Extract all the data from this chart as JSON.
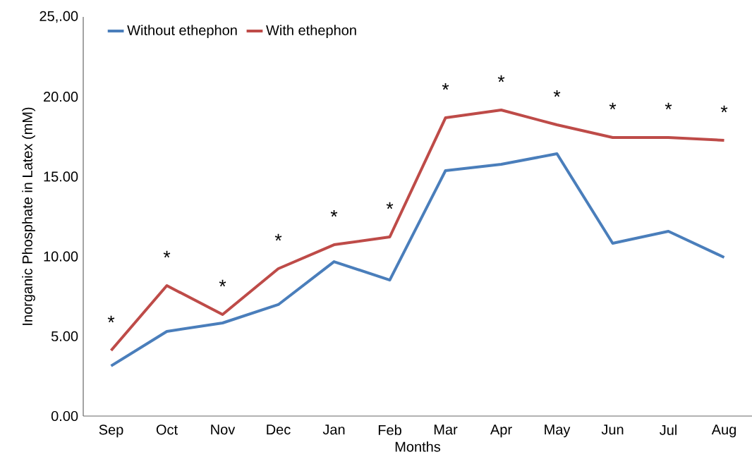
{
  "chart_data": {
    "type": "line",
    "xlabel": "Months",
    "ylabel": "Inorganic Phosphate in Latex (mM)",
    "categories": [
      "Sep",
      "Oct",
      "Nov",
      "Dec",
      "Jan",
      "Feb",
      "Mar",
      "Apr",
      "May",
      "Jun",
      "Jul",
      "Aug"
    ],
    "series": [
      {
        "name": "Without ethephon",
        "color": "#4a7ebb",
        "values": [
          3.14,
          5.3,
          5.83,
          6.98,
          9.67,
          8.52,
          15.37,
          15.77,
          16.43,
          10.82,
          11.57,
          9.94
        ]
      },
      {
        "name": "With ethephon",
        "color": "#be4b48",
        "values": [
          4.11,
          8.17,
          6.36,
          9.23,
          10.73,
          11.22,
          18.68,
          19.17,
          18.24,
          17.45,
          17.45,
          17.27
        ]
      }
    ],
    "ylim": [
      0,
      25
    ],
    "yticks": [
      {
        "value": 0,
        "label": "0.00"
      },
      {
        "value": 5,
        "label": "5.00"
      },
      {
        "value": 10,
        "label": "10.00"
      },
      {
        "value": 15,
        "label": "15.00"
      },
      {
        "value": 20,
        "label": "20.00"
      },
      {
        "value": 25,
        "label": "25,.00"
      }
    ],
    "annotations": [
      "*",
      "*",
      "*",
      "*",
      "*",
      "*",
      "*",
      "*",
      "*",
      "*",
      "*",
      "*"
    ],
    "legend": "top left",
    "grid": false,
    "marker": "none",
    "line_style": "solid"
  }
}
